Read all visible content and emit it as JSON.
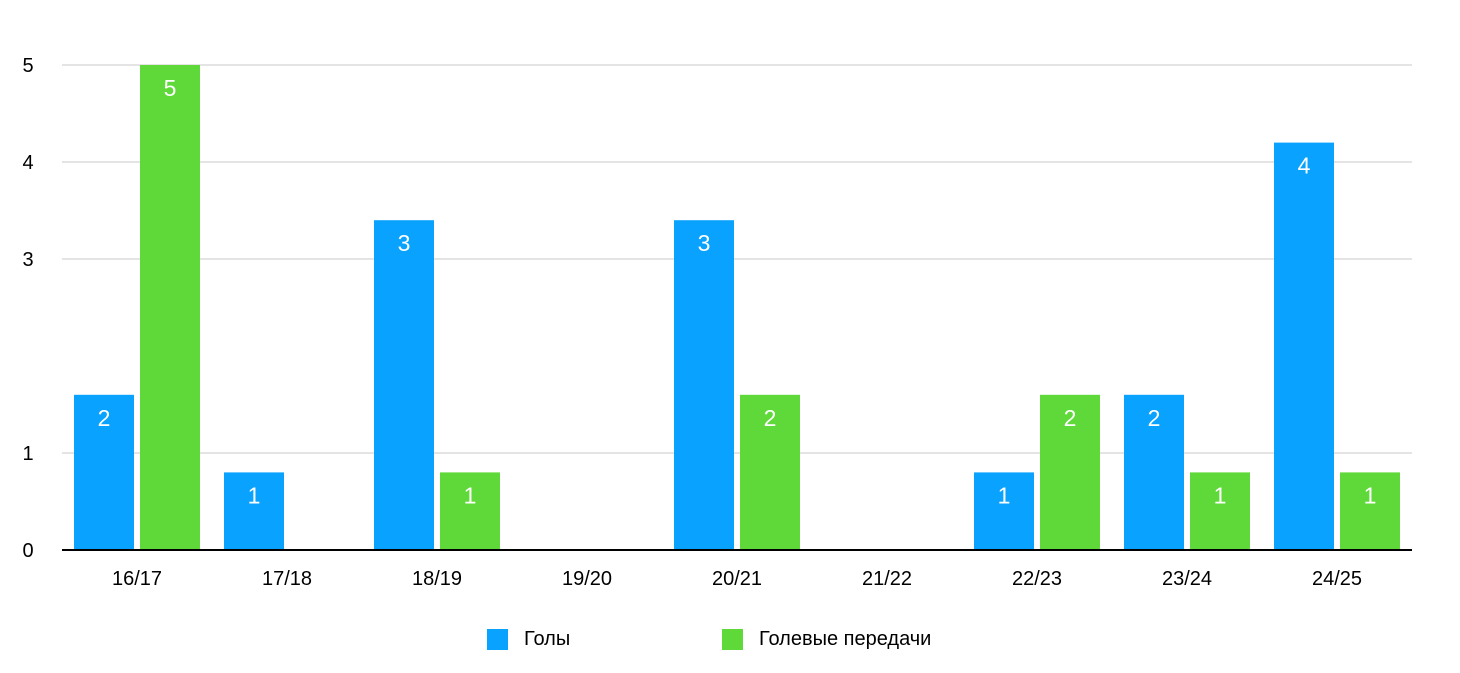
{
  "chart_data": {
    "type": "bar",
    "categories": [
      "16/17",
      "17/18",
      "18/19",
      "19/20",
      "20/21",
      "21/22",
      "22/23",
      "23/24",
      "24/25"
    ],
    "series": [
      {
        "name": "Голы",
        "color": "#0aa2ff",
        "values": [
          1.6,
          0.8,
          3.4,
          0,
          3.4,
          0,
          0.8,
          1.6,
          4.2
        ],
        "labels": [
          "2",
          "1",
          "3",
          "",
          "3",
          "",
          "1",
          "2",
          "4"
        ]
      },
      {
        "name": "Голевые передачи",
        "color": "#5fd93a",
        "values": [
          5,
          0,
          0.8,
          0,
          1.6,
          0,
          1.6,
          0.8,
          0.8
        ],
        "labels": [
          "5",
          "",
          "1",
          "",
          "2",
          "",
          "2",
          "1",
          "1"
        ]
      }
    ],
    "yticks": [
      "0",
      "1",
      "3",
      "4",
      "5"
    ],
    "ylim": [
      0,
      5
    ],
    "grid": true,
    "legend_position": "bottom"
  }
}
